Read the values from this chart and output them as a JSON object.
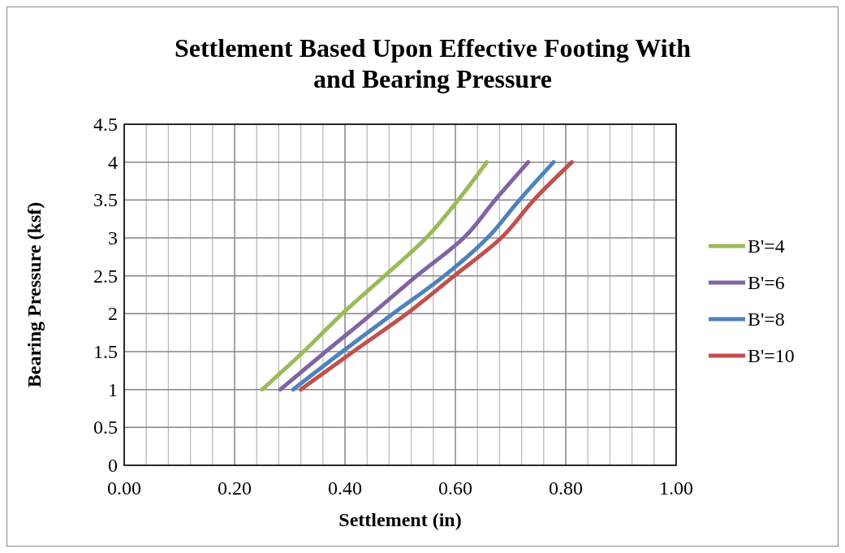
{
  "chart_data": {
    "type": "line",
    "title": "Settlement Based Upon Effective Footing With and Bearing Pressure",
    "xlabel": "Settlement (in)",
    "ylabel": "Bearing Pressure (ksf)",
    "xlim": [
      0,
      1
    ],
    "xticks": [
      {
        "value": 0,
        "label": "0.00"
      },
      {
        "value": 0.2,
        "label": "0.20"
      },
      {
        "value": 0.4,
        "label": "0.40"
      },
      {
        "value": 0.6,
        "label": "0.60"
      },
      {
        "value": 0.8,
        "label": "0.80"
      },
      {
        "value": 1,
        "label": "1.00"
      }
    ],
    "ylim": [
      0,
      4.5
    ],
    "yticks": [
      0,
      0.5,
      1,
      1.5,
      2,
      2.5,
      3,
      3.5,
      4,
      4.5
    ],
    "grid": true,
    "legend": "right",
    "marker": "none",
    "line_style": "solid",
    "series": [
      {
        "name": "B'=4",
        "color": "#9bbb59",
        "x": [
          0.25,
          0.325,
          0.395,
          0.472,
          0.547,
          0.605,
          0.657
        ],
        "values": [
          1,
          1.5,
          2,
          2.5,
          3,
          3.5,
          4
        ]
      },
      {
        "name": "B'=6",
        "color": "#8064a2",
        "x": [
          0.283,
          0.365,
          0.449,
          0.53,
          0.615,
          0.672,
          0.732
        ],
        "values": [
          1,
          1.5,
          2,
          2.5,
          3,
          3.5,
          4
        ]
      },
      {
        "name": "B'=8",
        "color": "#4f81bd",
        "x": [
          0.306,
          0.395,
          0.487,
          0.58,
          0.658,
          0.716,
          0.778
        ],
        "values": [
          1,
          1.5,
          2,
          2.5,
          3,
          3.5,
          4
        ]
      },
      {
        "name": "B'=10",
        "color": "#c0504d",
        "x": [
          0.32,
          0.415,
          0.512,
          0.598,
          0.683,
          0.742,
          0.811
        ],
        "values": [
          1,
          1.5,
          2,
          2.5,
          3,
          3.5,
          4
        ]
      }
    ]
  }
}
